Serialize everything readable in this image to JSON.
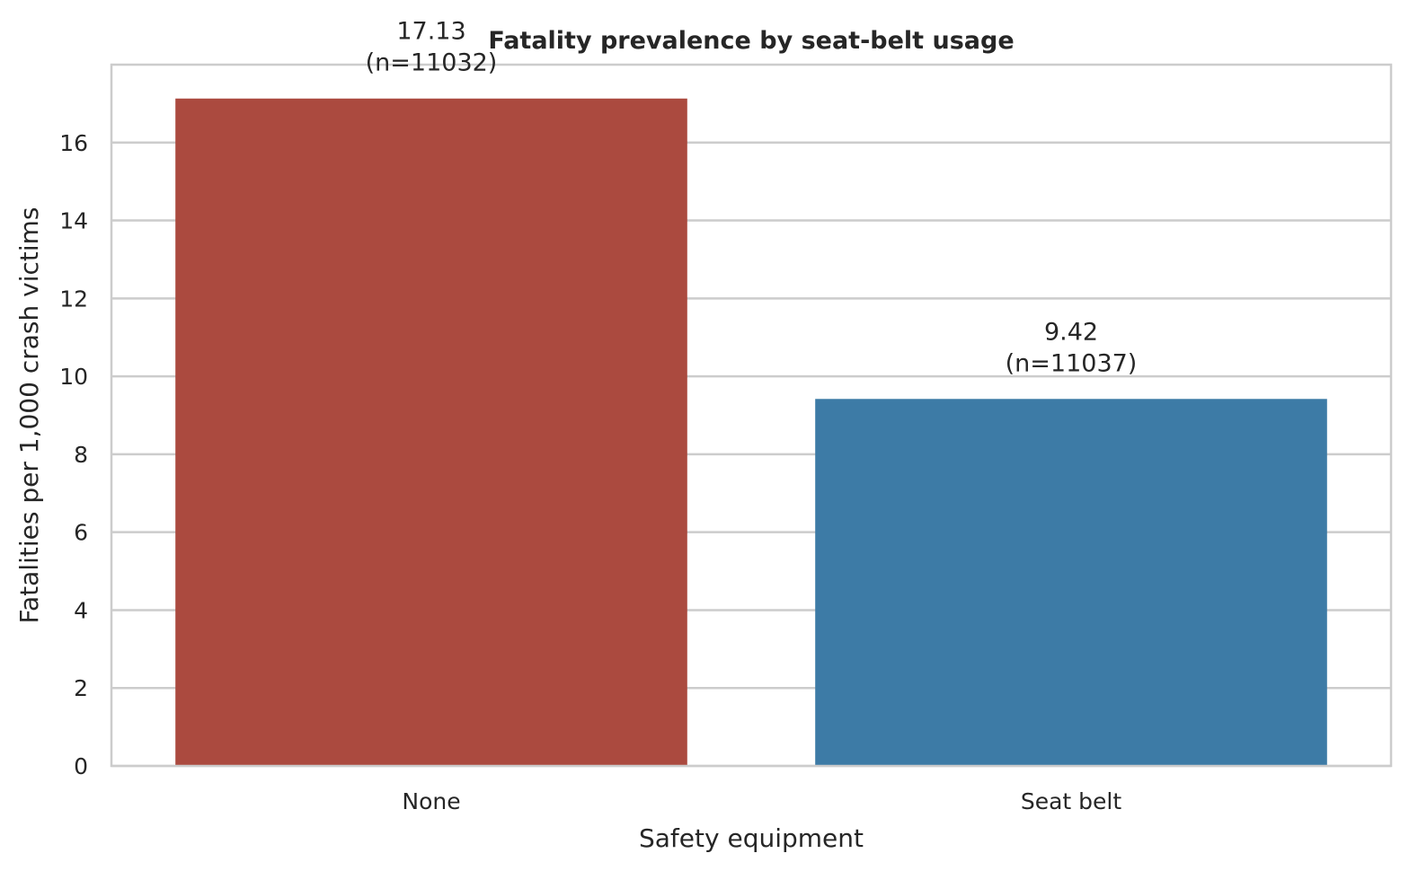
{
  "chart_data": {
    "type": "bar",
    "title": "Fatality prevalence by seat-belt usage",
    "xlabel": "Safety equipment",
    "ylabel": "Fatalities per 1,000 crash victims",
    "categories": [
      "None",
      "Seat belt"
    ],
    "values": [
      17.13,
      9.42
    ],
    "counts": [
      "(n=11032)",
      "(n=11037)"
    ],
    "value_labels": [
      "17.13",
      "9.42"
    ],
    "colors": [
      "#ab4a3f",
      "#3d7ba6"
    ],
    "ylim": [
      0,
      18
    ],
    "yticks": [
      0,
      2,
      4,
      6,
      8,
      10,
      12,
      14,
      16
    ],
    "grid": "horizontal",
    "legend": "none"
  }
}
